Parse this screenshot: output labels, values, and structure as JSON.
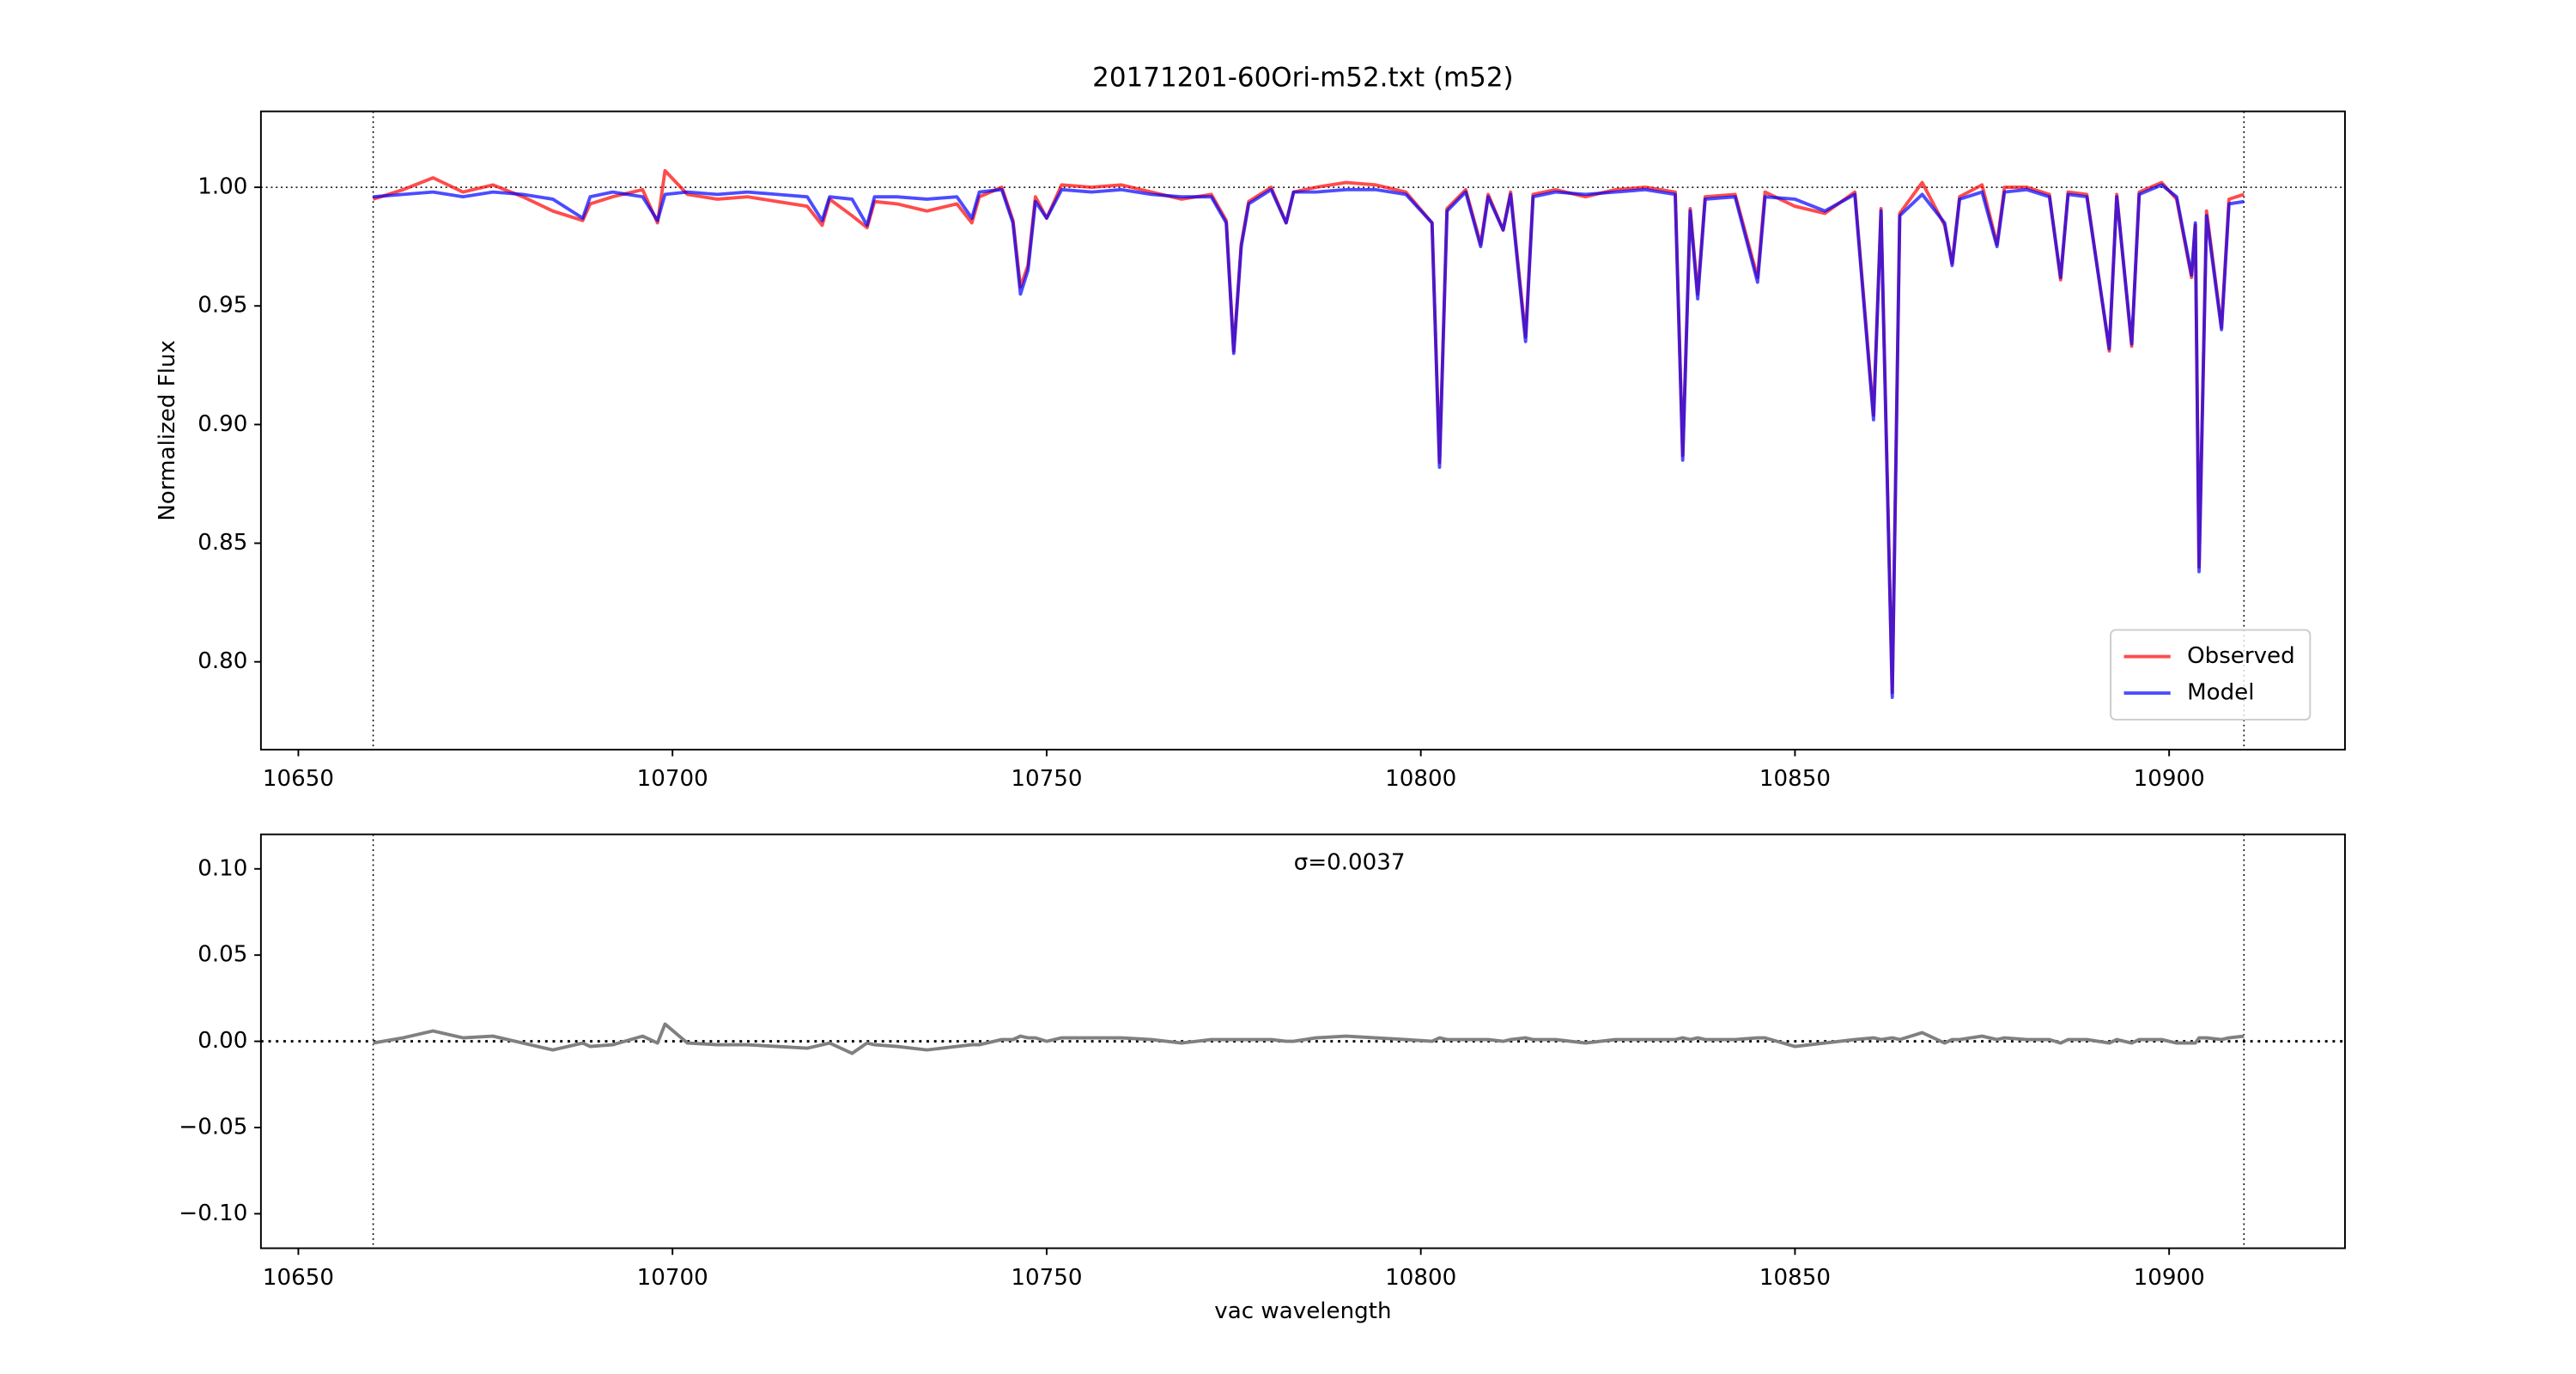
{
  "chart_data": [
    {
      "type": "line",
      "title": "20171201-60Ori-m52.txt (m52)",
      "y_label": "Normalized Flux",
      "x": [
        10660,
        10664,
        10668,
        10672,
        10676,
        10680,
        10684,
        10688,
        10689,
        10692,
        10696,
        10698,
        10699,
        10702,
        10706,
        10710,
        10714,
        10718,
        10720,
        10721,
        10724,
        10726,
        10727,
        10730,
        10734,
        10738,
        10740,
        10741,
        10744,
        10745.5,
        10746.5,
        10747.5,
        10748.5,
        10750,
        10752,
        10756,
        10760,
        10764,
        10768,
        10772,
        10774,
        10775,
        10776,
        10777,
        10780,
        10782,
        10783,
        10786,
        10790,
        10794,
        10798,
        10801.5,
        10802.5,
        10803.5,
        10806,
        10808,
        10809,
        10811,
        10812,
        10814,
        10815,
        10818,
        10822,
        10826,
        10830,
        10834,
        10835,
        10836,
        10837,
        10838,
        10842,
        10845,
        10846,
        10850,
        10854,
        10858,
        10860.5,
        10861.5,
        10863,
        10864,
        10867,
        10870,
        10871,
        10872,
        10875,
        10877,
        10878,
        10881,
        10884,
        10885.5,
        10886.5,
        10889,
        10892,
        10893,
        10895,
        10896,
        10899,
        10901,
        10903,
        10903.5,
        10904,
        10905,
        10907,
        10908,
        10910
      ],
      "series": [
        {
          "name": "Observed",
          "color": "#ff0000",
          "alpha": 0.7,
          "values": [
            0.995,
            0.999,
            1.004,
            0.998,
            1.001,
            0.996,
            0.99,
            0.986,
            0.993,
            0.996,
            0.999,
            0.985,
            1.007,
            0.997,
            0.995,
            0.996,
            0.994,
            0.992,
            0.984,
            0.995,
            0.988,
            0.983,
            0.994,
            0.993,
            0.99,
            0.993,
            0.985,
            0.996,
            1.0,
            0.986,
            0.958,
            0.967,
            0.996,
            0.987,
            1.001,
            1.0,
            1.001,
            0.998,
            0.995,
            0.997,
            0.986,
            0.931,
            0.976,
            0.994,
            1.0,
            0.985,
            0.998,
            1.0,
            1.002,
            1.001,
            0.998,
            0.985,
            0.884,
            0.991,
            0.999,
            0.976,
            0.997,
            0.982,
            0.998,
            0.937,
            0.997,
            0.999,
            0.996,
            0.999,
            1.0,
            0.998,
            0.887,
            0.991,
            0.955,
            0.996,
            0.997,
            0.962,
            0.998,
            0.992,
            0.989,
            0.998,
            0.904,
            0.991,
            0.787,
            0.989,
            1.002,
            0.984,
            0.968,
            0.996,
            1.001,
            0.976,
            1.0,
            1.0,
            0.997,
            0.961,
            0.998,
            0.997,
            0.931,
            0.997,
            0.933,
            0.998,
            1.002,
            0.995,
            0.962,
            0.984,
            0.84,
            0.99,
            0.941,
            0.995,
            0.997
          ]
        },
        {
          "name": "Model",
          "color": "#0000ff",
          "alpha": 0.7,
          "values": [
            0.996,
            0.997,
            0.998,
            0.996,
            0.998,
            0.997,
            0.995,
            0.987,
            0.996,
            0.998,
            0.996,
            0.986,
            0.997,
            0.998,
            0.997,
            0.998,
            0.997,
            0.996,
            0.986,
            0.996,
            0.995,
            0.984,
            0.996,
            0.996,
            0.995,
            0.996,
            0.987,
            0.998,
            0.999,
            0.985,
            0.955,
            0.965,
            0.994,
            0.987,
            0.999,
            0.998,
            0.999,
            0.997,
            0.996,
            0.996,
            0.985,
            0.93,
            0.975,
            0.993,
            0.999,
            0.985,
            0.998,
            0.998,
            0.999,
            0.999,
            0.997,
            0.985,
            0.882,
            0.99,
            0.998,
            0.975,
            0.996,
            0.982,
            0.997,
            0.935,
            0.996,
            0.998,
            0.997,
            0.998,
            0.999,
            0.997,
            0.885,
            0.99,
            0.953,
            0.995,
            0.996,
            0.96,
            0.996,
            0.995,
            0.99,
            0.997,
            0.902,
            0.99,
            0.785,
            0.988,
            0.997,
            0.985,
            0.967,
            0.995,
            0.998,
            0.975,
            0.998,
            0.999,
            0.996,
            0.962,
            0.997,
            0.996,
            0.932,
            0.996,
            0.934,
            0.997,
            1.001,
            0.996,
            0.963,
            0.985,
            0.838,
            0.988,
            0.94,
            0.993,
            0.994
          ]
        }
      ],
      "xlim": [
        10645,
        10923.5
      ],
      "ylim": [
        0.763,
        1.032
      ],
      "xticks": [
        10650,
        10700,
        10750,
        10800,
        10850,
        10900
      ],
      "yticks": [
        {
          "value": 0.8,
          "label": "0.80"
        },
        {
          "value": 0.85,
          "label": "0.85"
        },
        {
          "value": 0.9,
          "label": "0.90"
        },
        {
          "value": 0.95,
          "label": "0.95"
        },
        {
          "value": 1.0,
          "label": "1.00"
        }
      ],
      "vlines": [
        10660,
        10910
      ],
      "hlines": [
        1
      ],
      "legend": "lower right"
    },
    {
      "type": "line",
      "x_label": "vac wavelength",
      "annotation": "σ=0.0037",
      "x": [
        10660,
        10664,
        10668,
        10672,
        10676,
        10680,
        10684,
        10688,
        10689,
        10692,
        10696,
        10698,
        10699,
        10702,
        10706,
        10710,
        10714,
        10718,
        10720,
        10721,
        10724,
        10726,
        10727,
        10730,
        10734,
        10738,
        10740,
        10741,
        10744,
        10745.5,
        10746.5,
        10747.5,
        10748.5,
        10750,
        10752,
        10756,
        10760,
        10764,
        10768,
        10772,
        10774,
        10775,
        10776,
        10777,
        10780,
        10782,
        10783,
        10786,
        10790,
        10794,
        10798,
        10801.5,
        10802.5,
        10803.5,
        10806,
        10808,
        10809,
        10811,
        10812,
        10814,
        10815,
        10818,
        10822,
        10826,
        10830,
        10834,
        10835,
        10836,
        10837,
        10838,
        10842,
        10845,
        10846,
        10850,
        10854,
        10858,
        10860.5,
        10861.5,
        10863,
        10864,
        10867,
        10870,
        10871,
        10872,
        10875,
        10877,
        10878,
        10881,
        10884,
        10885.5,
        10886.5,
        10889,
        10892,
        10893,
        10895,
        10896,
        10899,
        10901,
        10903,
        10903.5,
        10904,
        10905,
        10907,
        10908,
        10910
      ],
      "values": [
        -0.001,
        0.002,
        0.006,
        0.002,
        0.003,
        -0.001,
        -0.005,
        -0.001,
        -0.003,
        -0.002,
        0.003,
        -0.001,
        0.01,
        -0.001,
        -0.002,
        -0.002,
        -0.003,
        -0.004,
        -0.002,
        -0.001,
        -0.007,
        -0.001,
        -0.002,
        -0.003,
        -0.005,
        -0.003,
        -0.002,
        -0.002,
        0.001,
        0.001,
        0.003,
        0.002,
        0.002,
        0,
        0.002,
        0.002,
        0.002,
        0.001,
        -0.001,
        0.001,
        0.001,
        0.001,
        0.001,
        0.001,
        0.001,
        0,
        0,
        0.002,
        0.003,
        0.002,
        0.001,
        0,
        0.002,
        0.001,
        0.001,
        0.001,
        0.001,
        0,
        0.001,
        0.002,
        0.001,
        0.001,
        -0.001,
        0.001,
        0.001,
        0.001,
        0.002,
        0.001,
        0.002,
        0.001,
        0.001,
        0.002,
        0.002,
        -0.003,
        -0.001,
        0.001,
        0.002,
        0.001,
        0.002,
        0.001,
        0.005,
        -0.001,
        0.001,
        0.001,
        0.003,
        0.001,
        0.002,
        0.001,
        0.001,
        -0.001,
        0.001,
        0.001,
        -0.001,
        0.001,
        -0.001,
        0.001,
        0.001,
        -0.001,
        -0.001,
        -0.001,
        0.002,
        0.002,
        0.001,
        0.002,
        0.003
      ],
      "color": "#808080",
      "xlim": [
        10645,
        10923.5
      ],
      "ylim": [
        -0.12,
        0.12
      ],
      "xticks": [
        10650,
        10700,
        10750,
        10800,
        10850,
        10900
      ],
      "yticks": [
        {
          "value": -0.1,
          "label": "−0.10"
        },
        {
          "value": -0.05,
          "label": "−0.05"
        },
        {
          "value": 0,
          "label": "0.00"
        },
        {
          "value": 0.05,
          "label": "0.05"
        },
        {
          "value": 0.1,
          "label": "0.10"
        }
      ],
      "vlines": [
        10660,
        10910
      ],
      "hlines": [
        0
      ]
    }
  ]
}
